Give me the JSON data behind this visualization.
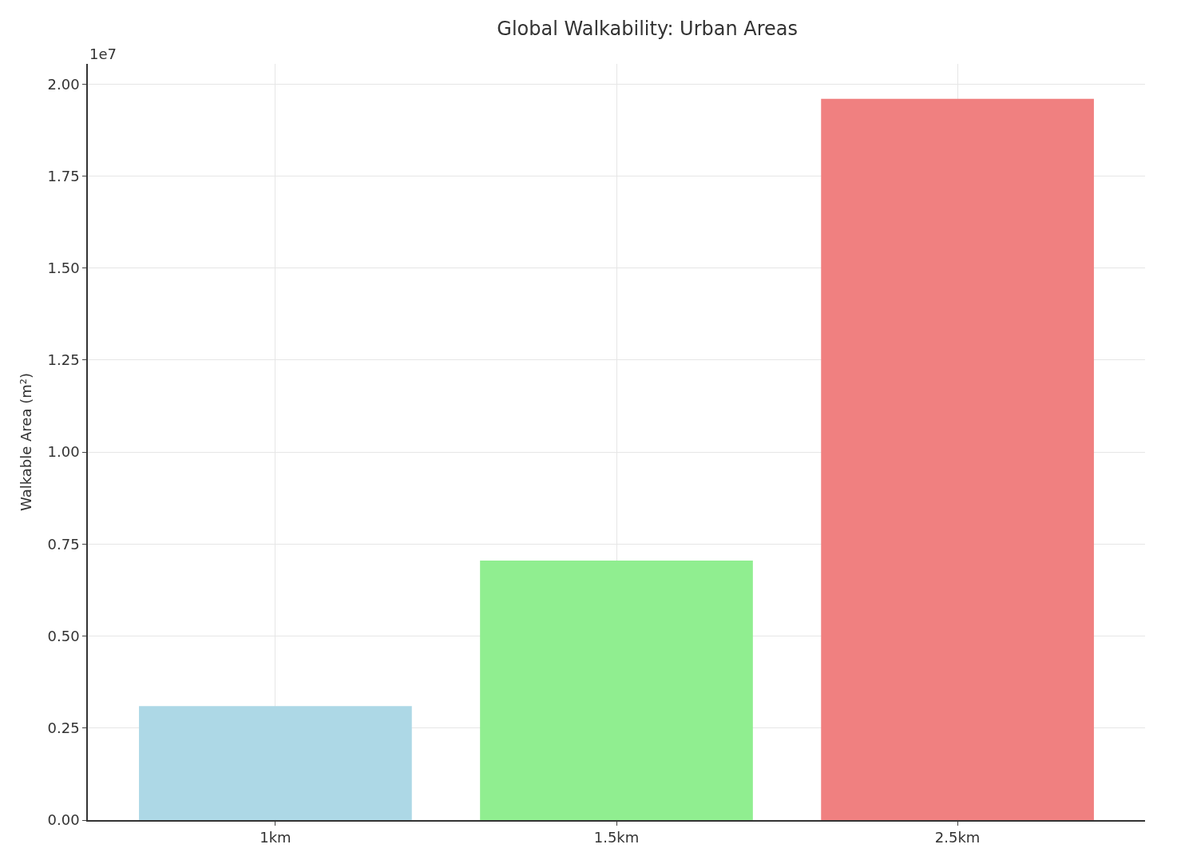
{
  "chart_data": {
    "type": "bar",
    "title": "Global Walkability: Urban Areas",
    "ylabel": "Walkable Area (m²)",
    "categories": [
      "1km",
      "1.5km",
      "2.5km"
    ],
    "values": [
      0.31,
      0.705,
      1.96
    ],
    "colors": [
      "#add8e6",
      "#90ee90",
      "#f08080"
    ],
    "ylim": [
      0,
      2.055
    ],
    "yticks": [
      {
        "value": 0,
        "label": "0.00"
      },
      0.25,
      {
        "value": 0.5,
        "label": "0.50"
      },
      0.75,
      {
        "value": 1,
        "label": "1.00"
      },
      1.25,
      {
        "value": 1.5,
        "label": "1.50"
      },
      1.75,
      {
        "value": 2,
        "label": "2.00"
      }
    ],
    "annotations": [
      "1e7"
    ],
    "grid": true
  }
}
